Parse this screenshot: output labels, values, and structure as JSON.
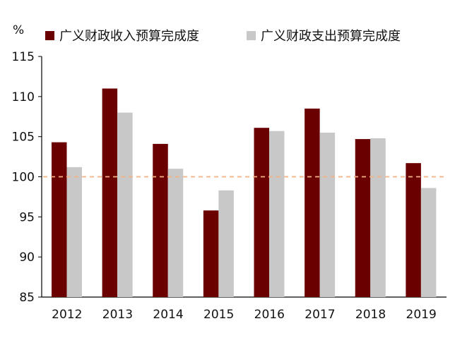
{
  "chart_data": {
    "type": "bar",
    "unit_label": "%",
    "categories": [
      "2012",
      "2013",
      "2014",
      "2015",
      "2016",
      "2017",
      "2018",
      "2019"
    ],
    "series": [
      {
        "name": "广义财政收入预算完成度",
        "color": "#6b0000",
        "values": [
          104.3,
          111.0,
          104.1,
          95.8,
          106.1,
          108.5,
          104.7,
          101.7
        ]
      },
      {
        "name": "广义财政支出预算完成度",
        "color": "#c8c8c8",
        "values": [
          101.2,
          108.0,
          101.0,
          98.3,
          105.7,
          105.5,
          104.8,
          98.6
        ]
      }
    ],
    "ylim": [
      85,
      115
    ],
    "yticks": [
      85,
      90,
      95,
      100,
      105,
      110,
      115
    ],
    "yticks_text": [
      "85",
      "90",
      "95",
      "100",
      "105",
      "110",
      "115"
    ],
    "reference_line": {
      "value": 100,
      "color": "#f4b183",
      "style": "dashed"
    },
    "legend_placement": "top",
    "grid": false
  }
}
